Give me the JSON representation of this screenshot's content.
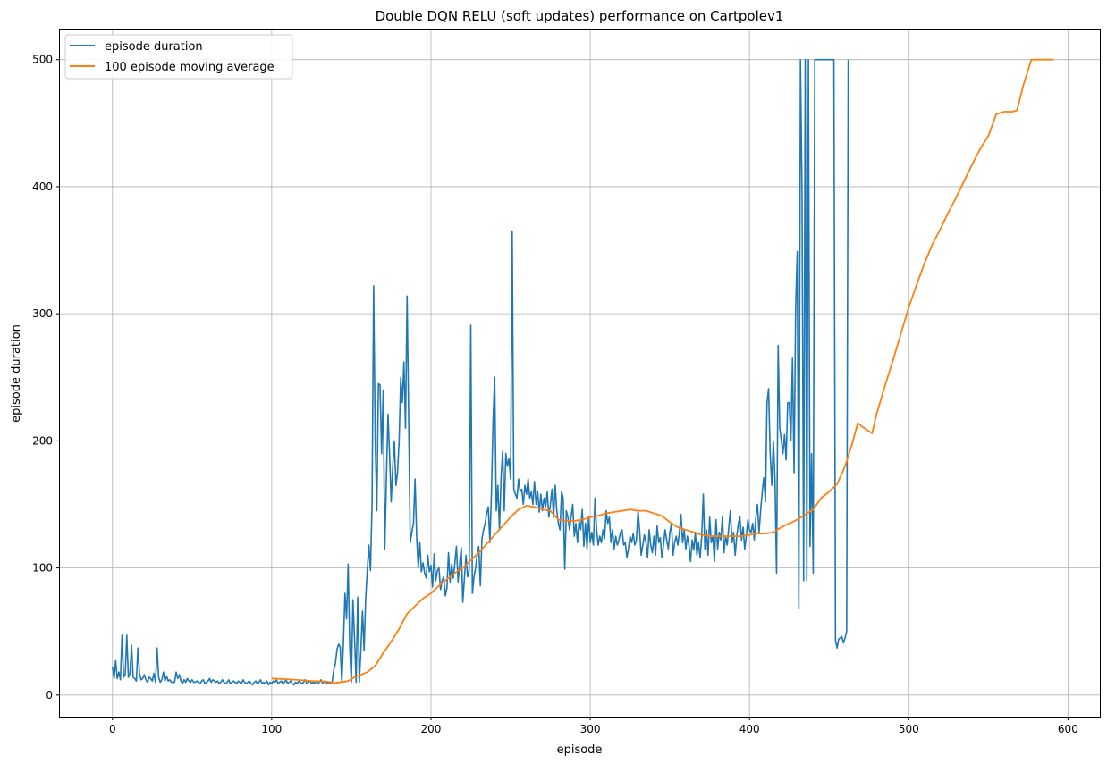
{
  "chart_data": {
    "type": "line",
    "title": "Double DQN RELU (soft updates) performance on Cartpolev1",
    "xlabel": "episode",
    "ylabel": "episode duration",
    "xlim": [
      -33,
      620
    ],
    "ylim": [
      -17,
      523
    ],
    "xticks": [
      0,
      100,
      200,
      300,
      400,
      500,
      600
    ],
    "yticks": [
      0,
      100,
      200,
      300,
      400,
      500
    ],
    "grid": true,
    "legend_position": "top-left",
    "series": [
      {
        "name": "episode duration",
        "color": "#1f77b4",
        "x_start": 0,
        "values": [
          22,
          13,
          27,
          13,
          18,
          12,
          47,
          14,
          16,
          47,
          14,
          17,
          39,
          14,
          13,
          11,
          37,
          17,
          12,
          13,
          16,
          12,
          10,
          14,
          13,
          11,
          17,
          10,
          37,
          14,
          10,
          12,
          18,
          11,
          15,
          11,
          12,
          10,
          10,
          10,
          18,
          13,
          16,
          11,
          9,
          12,
          10,
          13,
          11,
          10,
          12,
          10,
          10,
          11,
          10,
          9,
          11,
          12,
          9,
          10,
          11,
          13,
          10,
          12,
          11,
          10,
          11,
          9,
          10,
          12,
          10,
          9,
          10,
          12,
          9,
          10,
          11,
          10,
          9,
          11,
          10,
          9,
          12,
          10,
          9,
          10,
          11,
          9,
          8,
          10,
          11,
          9,
          10,
          12,
          9,
          10,
          9,
          11,
          8,
          10,
          9,
          11,
          10,
          12,
          9,
          10,
          11,
          9,
          10,
          12,
          9,
          10,
          11,
          9,
          8,
          10,
          9,
          11,
          10,
          9,
          10,
          12,
          9,
          10,
          11,
          9,
          10,
          9,
          11,
          9,
          10,
          12,
          9,
          11,
          10,
          9,
          10,
          9,
          11,
          20,
          25,
          36,
          40,
          38,
          10,
          40,
          80,
          60,
          103,
          38,
          10,
          75,
          45,
          10,
          77,
          10,
          36,
          66,
          35,
          76,
          98,
          118,
          98,
          150,
          322,
          200,
          145,
          245,
          244,
          190,
          240,
          115,
          170,
          221,
          190,
          152,
          180,
          200,
          165,
          175,
          200,
          250,
          230,
          262,
          210,
          314,
          218,
          120,
          128,
          135,
          170,
          125,
          100,
          120,
          97,
          104,
          96,
          92,
          110,
          97,
          102,
          85,
          111,
          90,
          98,
          100,
          83,
          90,
          93,
          78,
          84,
          112,
          89,
          103,
          92,
          104,
          117,
          89,
          103,
          116,
          73,
          92,
          110,
          93,
          98,
          291,
          80,
          93,
          100,
          110,
          117,
          86,
          123,
          130,
          135,
          143,
          148,
          120,
          160,
          216,
          250,
          145,
          165,
          130,
          170,
          192,
          145,
          190,
          180,
          186,
          170,
          365,
          162,
          158,
          155,
          170,
          160,
          162,
          150,
          165,
          158,
          170,
          155,
          160,
          150,
          168,
          150,
          160,
          144,
          158,
          145,
          155,
          148,
          160,
          140,
          150,
          162,
          140,
          165,
          145,
          135,
          130,
          160,
          155,
          99,
          145,
          140,
          130,
          140,
          150,
          125,
          135,
          120,
          137,
          130,
          146,
          117,
          135,
          115,
          140,
          120,
          128,
          118,
          155,
          130,
          118,
          125,
          120,
          130,
          123,
          145,
          135,
          140,
          120,
          130,
          115,
          125,
          118,
          122,
          128,
          130,
          118,
          120,
          108,
          115,
          125,
          120,
          127,
          118,
          122,
          145,
          130,
          110,
          118,
          126,
          120,
          108,
          130,
          118,
          112,
          125,
          110,
          133,
          120,
          124,
          108,
          118,
          130,
          122,
          115,
          128,
          135,
          110,
          120,
          125,
          118,
          128,
          142,
          120,
          130,
          115,
          125,
          118,
          105,
          122,
          114,
          128,
          110,
          120,
          108,
          125,
          158,
          115,
          130,
          110,
          140,
          120,
          125,
          105,
          138,
          115,
          128,
          122,
          140,
          112,
          125,
          118,
          132,
          145,
          120,
          128,
          110,
          125,
          135,
          140,
          122,
          132,
          115,
          125,
          138,
          130,
          128,
          135,
          122,
          140,
          150,
          128,
          145,
          160,
          171,
          152,
          230,
          241,
          190,
          165,
          200,
          170,
          96,
          275,
          210,
          200,
          190,
          205,
          185,
          230,
          230,
          200,
          265,
          175,
          305,
          349,
          68,
          500,
          395,
          90,
          500,
          90,
          500,
          117,
          190,
          96,
          500,
          500,
          500,
          500,
          500,
          500,
          500,
          500,
          500,
          500,
          500,
          500,
          500,
          43,
          37,
          44,
          45,
          46,
          41,
          45,
          50,
          500
        ]
      },
      {
        "name": "100 episode moving average",
        "color": "#ff7f0e",
        "points": [
          [
            100,
            13
          ],
          [
            115,
            12
          ],
          [
            125,
            11
          ],
          [
            135,
            10.5
          ],
          [
            140,
            9.5
          ],
          [
            148,
            11
          ],
          [
            152,
            14
          ],
          [
            160,
            18
          ],
          [
            165,
            23
          ],
          [
            170,
            33
          ],
          [
            175,
            42
          ],
          [
            180,
            52
          ],
          [
            185,
            64
          ],
          [
            190,
            70
          ],
          [
            195,
            76
          ],
          [
            200,
            80
          ],
          [
            205,
            86
          ],
          [
            210,
            91
          ],
          [
            215,
            96
          ],
          [
            220,
            100
          ],
          [
            225,
            106
          ],
          [
            230,
            112
          ],
          [
            235,
            119
          ],
          [
            240,
            126
          ],
          [
            245,
            133
          ],
          [
            250,
            140
          ],
          [
            255,
            146
          ],
          [
            260,
            149
          ],
          [
            265,
            148
          ],
          [
            270,
            146
          ],
          [
            275,
            145
          ],
          [
            280,
            138
          ],
          [
            285,
            137
          ],
          [
            290,
            137
          ],
          [
            295,
            138
          ],
          [
            300,
            140
          ],
          [
            305,
            141
          ],
          [
            310,
            143
          ],
          [
            315,
            144
          ],
          [
            320,
            145
          ],
          [
            325,
            146
          ],
          [
            330,
            145
          ],
          [
            335,
            145
          ],
          [
            340,
            143
          ],
          [
            345,
            141
          ],
          [
            350,
            136
          ],
          [
            355,
            132
          ],
          [
            360,
            130
          ],
          [
            365,
            128
          ],
          [
            370,
            126
          ],
          [
            375,
            125
          ],
          [
            380,
            125
          ],
          [
            385,
            125
          ],
          [
            390,
            125
          ],
          [
            395,
            125
          ],
          [
            400,
            126
          ],
          [
            405,
            127
          ],
          [
            410,
            127
          ],
          [
            415,
            128
          ],
          [
            420,
            132
          ],
          [
            425,
            135
          ],
          [
            430,
            138
          ],
          [
            435,
            142
          ],
          [
            440,
            146
          ],
          [
            445,
            155
          ],
          [
            450,
            160
          ],
          [
            455,
            166
          ],
          [
            460,
            180
          ],
          [
            465,
            200
          ],
          [
            468,
            214
          ],
          [
            472,
            210
          ],
          [
            477,
            206
          ],
          [
            480,
            222
          ],
          [
            485,
            243
          ],
          [
            490,
            263
          ],
          [
            495,
            284
          ],
          [
            500,
            305
          ],
          [
            505,
            323
          ],
          [
            510,
            340
          ],
          [
            515,
            355
          ],
          [
            520,
            367
          ],
          [
            525,
            380
          ],
          [
            530,
            392
          ],
          [
            535,
            405
          ],
          [
            540,
            418
          ],
          [
            545,
            430
          ],
          [
            550,
            440
          ],
          [
            555,
            457
          ],
          [
            560,
            459
          ],
          [
            565,
            459
          ],
          [
            568,
            460
          ],
          [
            572,
            480
          ],
          [
            577,
            500
          ],
          [
            591,
            500
          ]
        ]
      }
    ]
  }
}
